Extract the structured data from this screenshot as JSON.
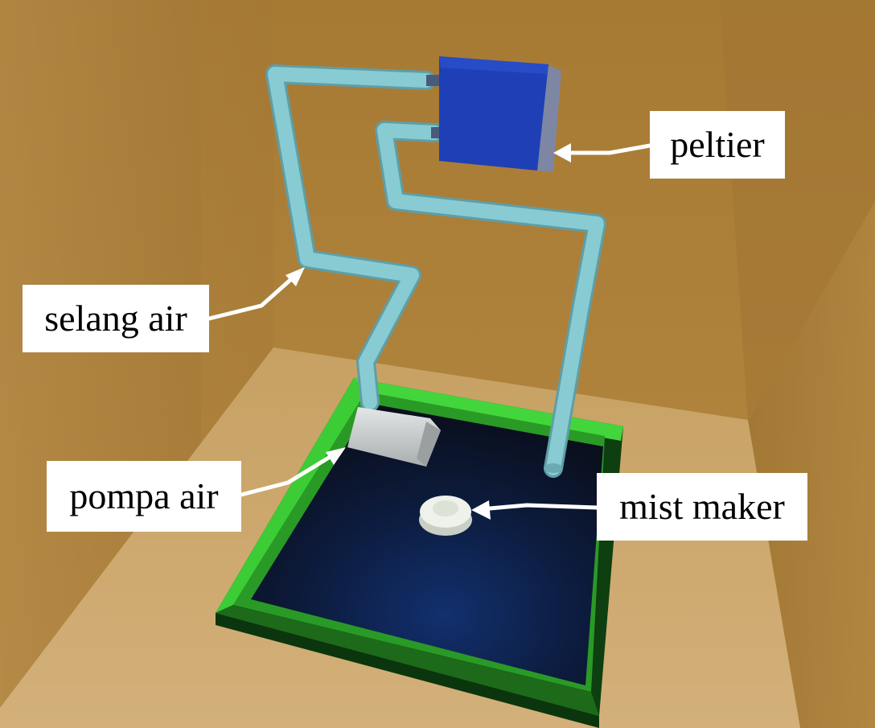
{
  "labels": {
    "peltier": "peltier",
    "selang_air": "selang air",
    "pompa_air": "pompa air",
    "mist_maker": "mist maker"
  },
  "colors": {
    "wall": "#a87a33",
    "floor": "#c9a363",
    "tray_rim": "#3fd23a",
    "tray_outer": "#0f4a12",
    "water": "#0b1630",
    "pipe": "#87c9d0",
    "peltier": "#1e3fb8",
    "pump": "#cfd3d3",
    "mist_maker": "#e6ebe3",
    "label_bg": "#ffffff",
    "label_text": "#000000"
  }
}
